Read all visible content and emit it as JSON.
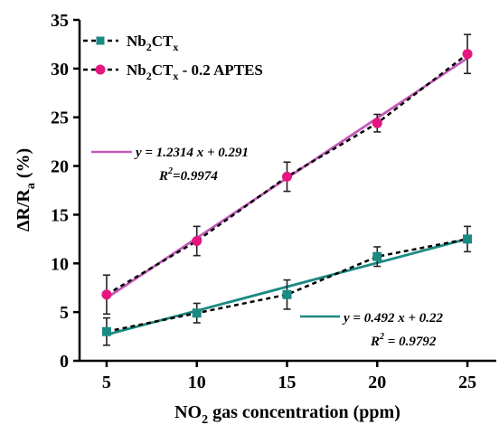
{
  "chart_data": {
    "type": "line",
    "xlabel_parts": [
      "NO",
      "2",
      " gas concentration (ppm)"
    ],
    "ylabel_parts": [
      "ΔR/R",
      "a",
      " (%)"
    ],
    "x_ticks": [
      "5",
      "10",
      "15",
      "20",
      "25"
    ],
    "y_ticks": [
      "0",
      "5",
      "10",
      "15",
      "20",
      "25",
      "30",
      "35"
    ],
    "xlim": [
      3.5,
      26.6
    ],
    "ylim": [
      0,
      35
    ],
    "grid": false,
    "legend_position": "top-left",
    "x": [
      5,
      10,
      15,
      20,
      25
    ],
    "series": [
      {
        "name_parts": [
          "Nb",
          "2",
          "CT",
          "x",
          ""
        ],
        "color": "#1a8a82",
        "marker": "square",
        "values": [
          3.0,
          4.9,
          6.8,
          10.7,
          12.5
        ],
        "errors": [
          1.4,
          1.0,
          1.5,
          1.0,
          1.3
        ],
        "fit": {
          "slope": 0.492,
          "intercept": 0.22,
          "color": "#1a8a82",
          "equation": "y = 0.492 x + 0.22",
          "r2_parts": [
            "R",
            "2",
            " = 0.9792"
          ]
        }
      },
      {
        "name_parts": [
          "Nb",
          "2",
          "CT",
          "x",
          " - 0.2 APTES"
        ],
        "color": "#e6157f",
        "marker": "circle",
        "values": [
          6.8,
          12.3,
          18.9,
          24.4,
          31.5
        ],
        "errors": [
          2.0,
          1.5,
          1.5,
          0.9,
          2.0
        ],
        "fit": {
          "slope": 1.2314,
          "intercept": 0.291,
          "color": "#c35bb8",
          "equation": "y = 1.2314 x + 0.291",
          "r2_parts": [
            "R",
            "2",
            "=0.9974"
          ]
        }
      }
    ]
  }
}
